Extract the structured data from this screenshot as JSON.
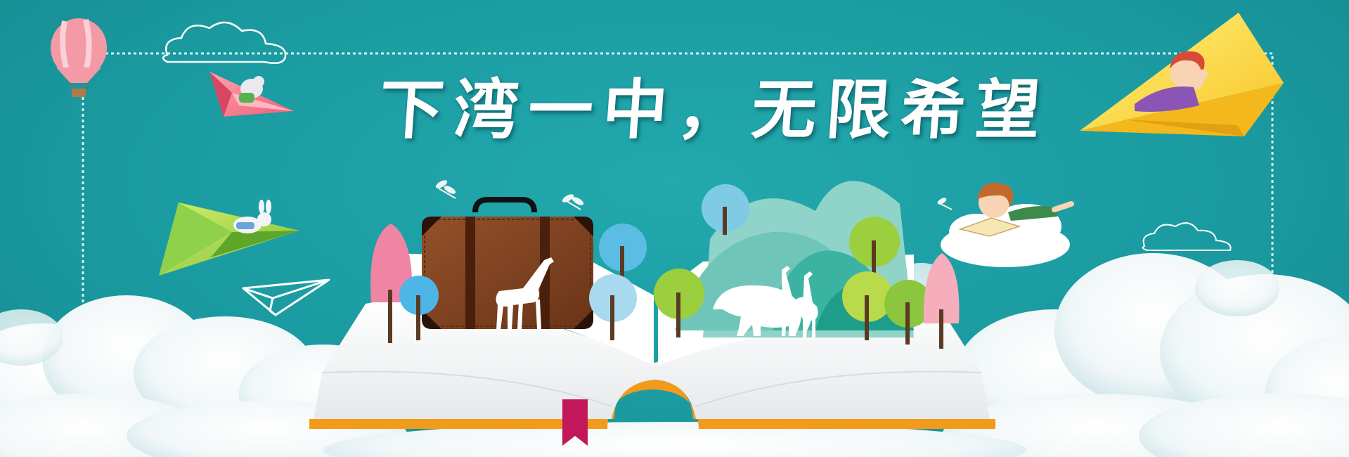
{
  "banner": {
    "headline": "下湾一中，无限希望"
  },
  "palette": {
    "background": "#1c9ea4",
    "cloud": "#ffffff",
    "book_edge": "#f29a1a",
    "bookmark": "#c2185b",
    "suitcase": "#7b3f1e"
  },
  "icons": [
    "hot-air-balloon-icon",
    "paper-plane-icon",
    "cloud-outline-icon",
    "suitcase-icon",
    "giraffe-icon",
    "elephant-icon",
    "tree-icon",
    "dragonfly-icon",
    "reading-child-icon",
    "sleeping-child-icon"
  ]
}
